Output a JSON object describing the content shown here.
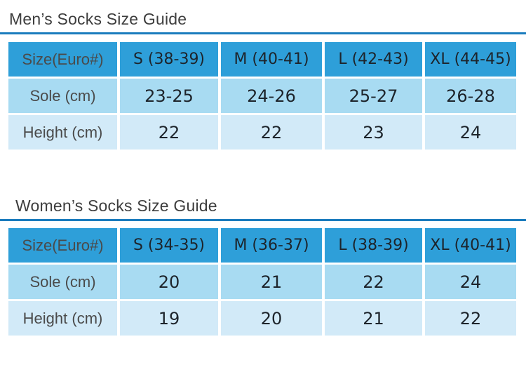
{
  "colors": {
    "page_bg": "#ffffff",
    "header_cell_bg": "#2e9fd9",
    "mid_row_bg": "#a8dbf2",
    "light_row_bg": "#d2eaf8",
    "divider": "#1b7cbd",
    "title_text": "#3d3d3d",
    "label_text": "#4a4a4a",
    "value_text": "#1d242b"
  },
  "sections": [
    {
      "title": "Men’s Socks Size Guide",
      "table": {
        "header": [
          "Size(Euro#)",
          "S (38-39)",
          "M (40-41)",
          "L (42-43)",
          "XL (44-45)"
        ],
        "rows": [
          {
            "label": "Sole (cm)",
            "values": [
              "23-25",
              "24-26",
              "25-27",
              "26-28"
            ]
          },
          {
            "label": "Height (cm)",
            "values": [
              "22",
              "22",
              "23",
              "24"
            ]
          }
        ]
      }
    },
    {
      "title": "Women’s Socks Size Guide",
      "table": {
        "header": [
          "Size(Euro#)",
          "S (34-35)",
          "M (36-37)",
          "L (38-39)",
          "XL (40-41)"
        ],
        "rows": [
          {
            "label": "Sole (cm)",
            "values": [
              "20",
              "21",
              "22",
              "24"
            ]
          },
          {
            "label": "Height (cm)",
            "values": [
              "19",
              "20",
              "21",
              "22"
            ]
          }
        ]
      }
    }
  ]
}
